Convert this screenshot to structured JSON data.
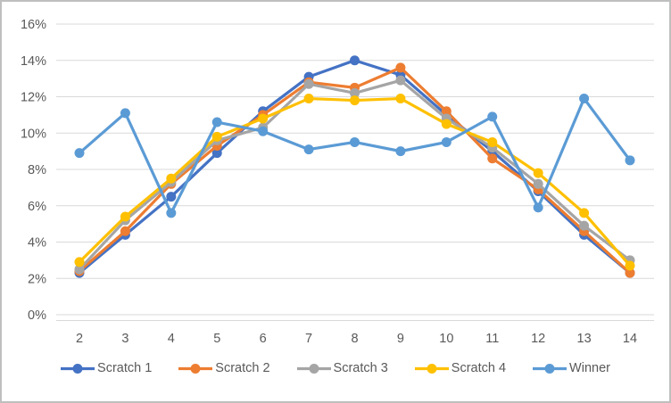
{
  "window": {
    "background": "#FFFFFF",
    "border_color": "#BFBFBF"
  },
  "chart_data": {
    "type": "line",
    "title": "",
    "xlabel": "",
    "ylabel": "",
    "grid": true,
    "legend_position": "bottom",
    "marker": "circle",
    "colors": {
      "grid": "#D9D9D9",
      "axis_text": "#595959"
    },
    "x_categories": [
      "2",
      "3",
      "4",
      "5",
      "6",
      "7",
      "8",
      "9",
      "10",
      "11",
      "12",
      "13",
      "14"
    ],
    "ylim": [
      0,
      16
    ],
    "y_ticks": [
      {
        "value": 0,
        "label": "0%"
      },
      {
        "value": 2,
        "label": "2%"
      },
      {
        "value": 4,
        "label": "4%"
      },
      {
        "value": 6,
        "label": "6%"
      },
      {
        "value": 8,
        "label": "8%"
      },
      {
        "value": 10,
        "label": "10%"
      },
      {
        "value": 12,
        "label": "12%"
      },
      {
        "value": 14,
        "label": "14%"
      },
      {
        "value": 16,
        "label": "16%"
      }
    ],
    "series": [
      {
        "name": "Scratch 1",
        "color": "#4472C4",
        "values": [
          2.3,
          4.4,
          6.5,
          8.9,
          11.2,
          13.1,
          14.0,
          13.2,
          11.0,
          9.0,
          6.8,
          4.4,
          2.3
        ]
      },
      {
        "name": "Scratch 2",
        "color": "#ED7D31",
        "values": [
          2.4,
          4.6,
          7.2,
          9.3,
          11.0,
          12.8,
          12.5,
          13.6,
          11.2,
          8.6,
          6.9,
          4.6,
          2.3
        ]
      },
      {
        "name": "Scratch 3",
        "color": "#A5A5A5",
        "values": [
          2.5,
          5.2,
          7.3,
          9.6,
          10.3,
          12.7,
          12.2,
          12.9,
          10.8,
          9.2,
          7.2,
          4.9,
          3.0
        ]
      },
      {
        "name": "Scratch 4",
        "color": "#FFC000",
        "values": [
          2.9,
          5.4,
          7.5,
          9.8,
          10.8,
          11.9,
          11.8,
          11.9,
          10.5,
          9.5,
          7.8,
          5.6,
          2.7
        ]
      },
      {
        "name": "Winner",
        "color": "#5B9BD5",
        "values": [
          8.9,
          11.1,
          5.6,
          10.6,
          10.1,
          9.1,
          9.5,
          9.0,
          9.5,
          10.9,
          5.9,
          11.9,
          8.5
        ]
      }
    ]
  }
}
